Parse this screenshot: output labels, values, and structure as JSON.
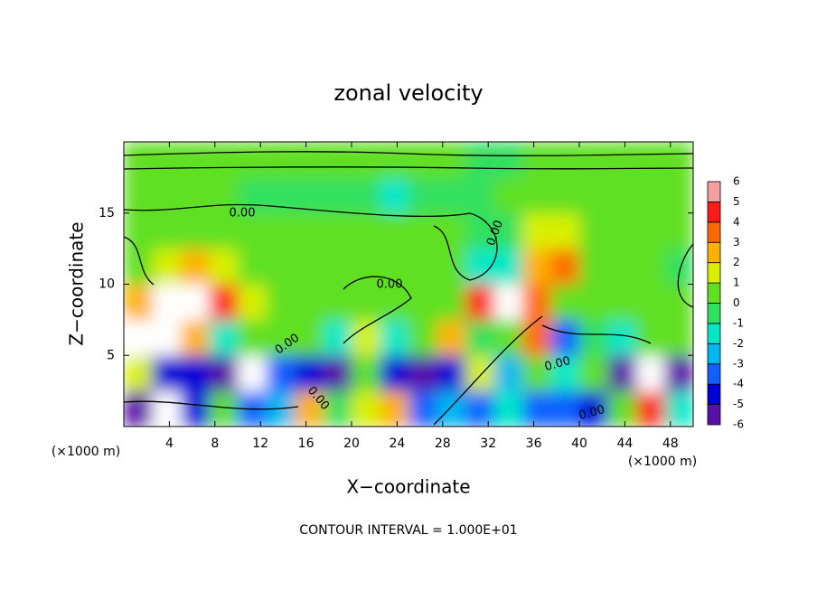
{
  "chart_data": {
    "type": "contour",
    "title": "zonal velocity",
    "xlabel": "X−coordinate",
    "ylabel": "Z−coordinate",
    "x_unit_left": "(×1000 m)",
    "x_unit_right": "(×1000 m)",
    "footer": "CONTOUR INTERVAL = 1.000E+01",
    "contour_labels": [
      "0.00",
      "0.00",
      "0.00",
      "0.00",
      "0.00",
      "0.00",
      "0.00"
    ],
    "xlim": [
      0,
      50
    ],
    "ylim": [
      0,
      20
    ],
    "xticks": [
      4,
      8,
      12,
      16,
      20,
      24,
      28,
      32,
      36,
      40,
      44,
      48
    ],
    "yticks": [
      5,
      10,
      15
    ],
    "x": [
      1.25,
      3.75,
      6.25,
      8.75,
      11.25,
      13.75,
      16.25,
      18.75,
      21.25,
      23.75,
      26.25,
      28.75,
      31.25,
      33.75,
      36.25,
      38.75,
      41.25,
      43.75,
      46.25,
      48.75
    ],
    "y": [
      1.25,
      3.75,
      6.25,
      8.75,
      11.25,
      13.75,
      16.25,
      18.75
    ],
    "z": [
      [
        -5,
        -6.5,
        -4,
        1,
        -3,
        -2,
        3,
        0,
        2,
        3,
        -3,
        -2,
        -3,
        -1,
        -3,
        -3,
        -4,
        1,
        5,
        -1
      ],
      [
        2,
        -4,
        -4.5,
        -5,
        -6.5,
        -3,
        -4,
        -5,
        0.5,
        -4,
        -5.5,
        -4,
        2,
        -2,
        0.5,
        -1,
        1,
        -5,
        -6.5,
        -5
      ],
      [
        6.5,
        7,
        3,
        -1,
        0.5,
        0.3,
        0.2,
        -1,
        2,
        -1,
        0.3,
        3,
        -0.5,
        0.5,
        4,
        -3,
        -0.5,
        -1,
        0.5,
        0.5
      ],
      [
        3,
        6.5,
        7,
        5,
        1.5,
        0.5,
        0.3,
        0.3,
        0.3,
        0.3,
        0.5,
        1,
        5,
        7,
        4,
        1,
        0.5,
        0.5,
        0.5,
        0.3
      ],
      [
        1,
        2,
        3,
        2,
        0.8,
        0.5,
        0.3,
        0.3,
        0.3,
        0.3,
        0.2,
        0.5,
        -1,
        -1.5,
        3,
        3.2,
        1,
        0.5,
        0.3,
        -0.3
      ],
      [
        0.5,
        0.5,
        0.5,
        0.5,
        0.3,
        0.3,
        0.2,
        0.1,
        0.1,
        0.1,
        0.2,
        0.3,
        -0.3,
        -0.8,
        1.5,
        1.2,
        0.5,
        0.5,
        0.5,
        0.5
      ],
      [
        0.3,
        0.3,
        0.2,
        0.1,
        -0.3,
        -0.5,
        -0.5,
        -0.8,
        -0.8,
        -1,
        -0.8,
        -0.5,
        -0.3,
        0.2,
        0.3,
        0.4,
        0.3,
        0.3,
        0.4,
        0.4
      ],
      [
        0.3,
        0.3,
        0.3,
        0.3,
        0.3,
        0.3,
        0.3,
        0.2,
        0.2,
        0.2,
        0.2,
        0.2,
        -0.2,
        -0.2,
        0.2,
        0.2,
        0.3,
        0.3,
        0.3,
        0.3
      ]
    ],
    "levels": [
      -6,
      -5,
      -4,
      -3,
      -2,
      -1,
      0,
      1,
      2,
      3,
      4,
      5,
      6
    ],
    "colors": [
      "#5a10a8",
      "#0000d8",
      "#1060ff",
      "#00b8f0",
      "#00e8c8",
      "#30e060",
      "#60e020",
      "#d8f000",
      "#ffb000",
      "#ff6a00",
      "#ff1a1a",
      "#f4a0a0"
    ],
    "extreme_color": "#ffffff"
  }
}
